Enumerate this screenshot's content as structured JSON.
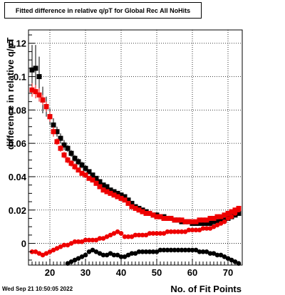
{
  "footer": {
    "timestamp": "Wed Sep 21 10:50:05 2022"
  },
  "chart_data": {
    "type": "scatter",
    "title": "Fitted difference in relative q/pT for Global Rec All NoHits",
    "xlabel": "No. of Fit Points",
    "ylabel": "difference in relative q/pT",
    "xlim": [
      14,
      74
    ],
    "ylim": [
      -0.013,
      0.128
    ],
    "xticks": [
      20,
      30,
      40,
      50,
      60,
      70
    ],
    "yticks": [
      0,
      0.02,
      0.04,
      0.06,
      0.08,
      0.1,
      0.12
    ],
    "ytick_labels": [
      "0",
      "0.02",
      "0.04",
      "0.06",
      "0.08",
      "0.1",
      "0.12"
    ],
    "grid": true,
    "series": [
      {
        "color": "#000000",
        "marker": "square",
        "x": [
          15,
          16,
          17,
          18,
          19,
          20,
          21,
          22,
          23,
          24,
          25,
          26,
          27,
          28,
          29,
          30,
          31,
          32,
          33,
          34,
          35,
          36,
          37,
          38,
          39,
          40,
          41,
          42,
          43,
          44,
          45,
          46,
          47,
          48,
          49,
          50,
          51,
          52,
          53,
          54,
          55,
          56,
          57,
          58,
          59,
          60,
          61,
          62,
          63,
          64,
          65,
          66,
          67,
          68,
          69,
          70,
          71,
          72,
          73
        ],
        "y": [
          0.104,
          0.105,
          0.1,
          0.086,
          0.082,
          0.076,
          0.071,
          0.067,
          0.063,
          0.059,
          0.057,
          0.054,
          0.051,
          0.049,
          0.047,
          0.045,
          0.043,
          0.041,
          0.039,
          0.037,
          0.035,
          0.034,
          0.032,
          0.031,
          0.03,
          0.029,
          0.028,
          0.026,
          0.024,
          0.022,
          0.021,
          0.02,
          0.019,
          0.018,
          0.017,
          0.017,
          0.016,
          0.016,
          0.015,
          0.015,
          0.014,
          0.014,
          0.013,
          0.013,
          0.013,
          0.012,
          0.012,
          0.012,
          0.012,
          0.012,
          0.012,
          0.013,
          0.013,
          0.014,
          0.014,
          0.015,
          0.016,
          0.017,
          0.018
        ],
        "yerr": [
          0.015,
          0.014,
          0.012,
          0.008,
          0.006,
          0.005,
          0.004,
          0.003,
          0.003,
          0.003,
          0.002,
          0.002,
          0.002,
          0.002,
          0.002,
          0.002,
          0.001,
          0.001,
          0.001,
          0.001,
          0.001,
          0.001,
          0.001,
          0.001,
          0.001,
          0.001,
          0.001,
          0.001,
          0.001,
          0.001,
          0.001,
          0.001,
          0.001,
          0.001,
          0.001,
          0.001,
          0.001,
          0.001,
          0.001,
          0.001,
          0.001,
          0.001,
          0.001,
          0.001,
          0.001,
          0.001,
          0.001,
          0.001,
          0.001,
          0.001,
          0.001,
          0.001,
          0.001,
          0.001,
          0.001,
          0.001,
          0.001,
          0.001,
          0.001
        ]
      },
      {
        "color": "#ee0000",
        "marker": "square",
        "x": [
          15,
          16,
          17,
          18,
          19,
          20,
          21,
          22,
          23,
          24,
          25,
          26,
          27,
          28,
          29,
          30,
          31,
          32,
          33,
          34,
          35,
          36,
          37,
          38,
          39,
          40,
          41,
          42,
          43,
          44,
          45,
          46,
          47,
          48,
          49,
          50,
          51,
          52,
          53,
          54,
          55,
          56,
          57,
          58,
          59,
          60,
          61,
          62,
          63,
          64,
          65,
          66,
          67,
          68,
          69,
          70,
          71,
          72,
          73
        ],
        "y": [
          0.092,
          0.091,
          0.089,
          0.086,
          0.082,
          0.076,
          0.067,
          0.061,
          0.057,
          0.053,
          0.05,
          0.048,
          0.046,
          0.044,
          0.042,
          0.041,
          0.039,
          0.038,
          0.036,
          0.034,
          0.032,
          0.031,
          0.03,
          0.029,
          0.028,
          0.027,
          0.026,
          0.024,
          0.022,
          0.021,
          0.02,
          0.019,
          0.018,
          0.018,
          0.017,
          0.016,
          0.016,
          0.015,
          0.015,
          0.015,
          0.014,
          0.014,
          0.014,
          0.013,
          0.013,
          0.013,
          0.013,
          0.014,
          0.014,
          0.014,
          0.015,
          0.015,
          0.016,
          0.016,
          0.017,
          0.018,
          0.019,
          0.02,
          0.021
        ],
        "yerr": [
          0.004,
          0.004,
          0.004,
          0.003,
          0.003,
          0.003,
          0.003,
          0.002,
          0.002,
          0.002,
          0.002,
          0.002,
          0.002,
          0.001,
          0.001,
          0.001,
          0.001,
          0.001,
          0.001,
          0.001,
          0.001,
          0.001,
          0.001,
          0.001,
          0.001,
          0.001,
          0.001,
          0.001,
          0.001,
          0.001,
          0.001,
          0.001,
          0.001,
          0.001,
          0.001,
          0.001,
          0.001,
          0.001,
          0.001,
          0.001,
          0.001,
          0.001,
          0.001,
          0.001,
          0.001,
          0.001,
          0.001,
          0.001,
          0.001,
          0.001,
          0.001,
          0.001,
          0.001,
          0.001,
          0.001,
          0.001,
          0.001,
          0.001,
          0.001
        ]
      },
      {
        "color": "#ee0000",
        "marker": "circle",
        "x": [
          15,
          16,
          17,
          18,
          19,
          20,
          21,
          22,
          23,
          24,
          25,
          26,
          27,
          28,
          29,
          30,
          31,
          32,
          33,
          34,
          35,
          36,
          37,
          38,
          39,
          40,
          41,
          42,
          43,
          44,
          45,
          46,
          47,
          48,
          49,
          50,
          51,
          52,
          53,
          54,
          55,
          56,
          57,
          58,
          59,
          60,
          61,
          62,
          63,
          64,
          65,
          66,
          67,
          68,
          69,
          70,
          71,
          72,
          73
        ],
        "y": [
          -0.005,
          -0.005,
          -0.006,
          -0.007,
          -0.006,
          -0.005,
          -0.004,
          -0.003,
          -0.002,
          -0.001,
          -0.001,
          0.0,
          0.001,
          0.001,
          0.001,
          0.002,
          0.002,
          0.002,
          0.002,
          0.003,
          0.003,
          0.004,
          0.005,
          0.006,
          0.007,
          0.006,
          0.004,
          0.004,
          0.004,
          0.005,
          0.005,
          0.005,
          0.005,
          0.006,
          0.006,
          0.006,
          0.006,
          0.006,
          0.007,
          0.007,
          0.007,
          0.007,
          0.007,
          0.007,
          0.008,
          0.008,
          0.008,
          0.008,
          0.009,
          0.009,
          0.009,
          0.01,
          0.011,
          0.012,
          0.013,
          0.015,
          0.016,
          0.018,
          0.02
        ]
      },
      {
        "color": "#000000",
        "marker": "circle",
        "x": [
          25,
          26,
          27,
          28,
          29,
          30,
          31,
          32,
          33,
          34,
          35,
          36,
          37,
          38,
          39,
          40,
          41,
          42,
          43,
          44,
          45,
          46,
          47,
          48,
          49,
          50,
          51,
          52,
          53,
          54,
          55,
          56,
          57,
          58,
          59,
          60,
          61,
          62,
          63,
          64,
          65,
          66,
          67,
          68,
          69,
          70,
          71,
          72,
          73
        ],
        "y": [
          -0.012,
          -0.011,
          -0.01,
          -0.009,
          -0.008,
          -0.007,
          -0.005,
          -0.004,
          -0.005,
          -0.006,
          -0.007,
          -0.007,
          -0.006,
          -0.007,
          -0.007,
          -0.008,
          -0.008,
          -0.007,
          -0.006,
          -0.006,
          -0.005,
          -0.005,
          -0.005,
          -0.005,
          -0.005,
          -0.005,
          -0.004,
          -0.004,
          -0.004,
          -0.004,
          -0.004,
          -0.004,
          -0.004,
          -0.004,
          -0.004,
          -0.004,
          -0.004,
          -0.005,
          -0.005,
          -0.005,
          -0.006,
          -0.006,
          -0.007,
          -0.007,
          -0.008,
          -0.009,
          -0.01,
          -0.011,
          -0.012
        ]
      }
    ]
  }
}
